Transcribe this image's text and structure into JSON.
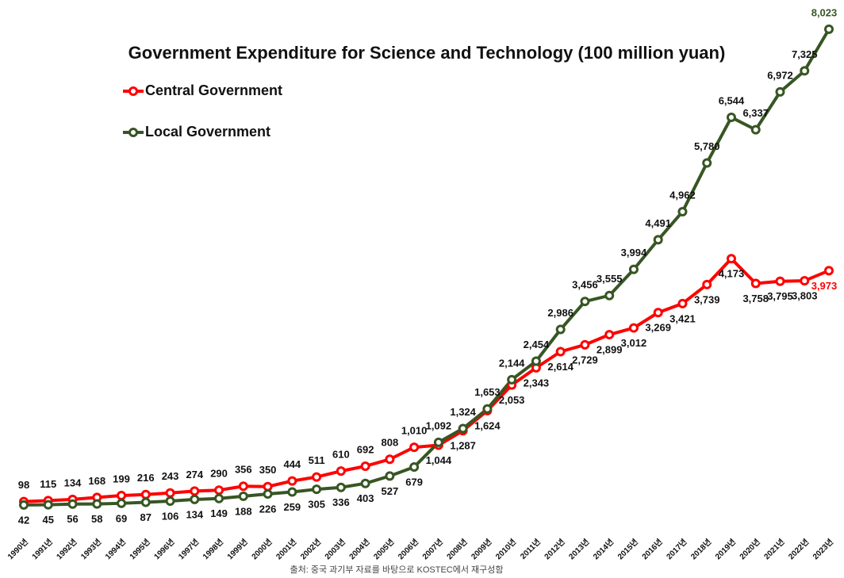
{
  "chart_data": {
    "type": "line",
    "title": "Government Expenditure for Science and Technology (100 million yuan)",
    "source": "출처: 중국 과기부 자료를 바탕으로 KOSTEC에서 재구성함",
    "categories": [
      "1990년",
      "1991년",
      "1992년",
      "1993년",
      "1994년",
      "1995년",
      "1996년",
      "1997년",
      "1998년",
      "1999년",
      "2000년",
      "2001년",
      "2002년",
      "2003년",
      "2004년",
      "2005년",
      "2006년",
      "2007년",
      "2008년",
      "2009년",
      "2010년",
      "2011년",
      "2012년",
      "2013년",
      "2014년",
      "2015년",
      "2016년",
      "2017년",
      "2018년",
      "2019년",
      "2020년",
      "2021년",
      "2022년",
      "2023년"
    ],
    "ylim": [
      0,
      8500
    ],
    "legend": "upper-left",
    "series": [
      {
        "name": "Central Government",
        "color": "#ff0000",
        "values": [
          98,
          115,
          134,
          168,
          199,
          216,
          243,
          274,
          290,
          356,
          350,
          444,
          511,
          610,
          692,
          808,
          1010,
          1044,
          1287,
          1624,
          2053,
          2343,
          2614,
          2729,
          2899,
          3012,
          3269,
          3421,
          3739,
          4173,
          3758,
          3795,
          3803,
          3973
        ],
        "value_labels": [
          "98",
          "115",
          "134",
          "168",
          "199",
          "216",
          "243",
          "274",
          "290",
          "356",
          "350",
          "444",
          "511",
          "610",
          "692",
          "808",
          "1,010",
          "1,044",
          "1,287",
          "1,624",
          "2,053",
          "2,343",
          "2,614",
          "2,729",
          "2,899",
          "3,012",
          "3,269",
          "3,421",
          "3,739",
          "4,173",
          "3,758",
          "3,795",
          "3,803",
          "3,973"
        ]
      },
      {
        "name": "Local Government",
        "color": "#375623",
        "values": [
          42,
          45,
          56,
          58,
          69,
          87,
          106,
          134,
          149,
          188,
          226,
          259,
          305,
          336,
          403,
          527,
          679,
          1092,
          1324,
          1653,
          2144,
          2454,
          2986,
          3456,
          3555,
          3994,
          4491,
          4962,
          5780,
          6544,
          6337,
          6972,
          7325,
          8023
        ],
        "value_labels": [
          "42",
          "45",
          "56",
          "58",
          "69",
          "87",
          "106",
          "134",
          "149",
          "188",
          "226",
          "259",
          "305",
          "336",
          "403",
          "527",
          "679",
          "1,092",
          "1,324",
          "1,653",
          "2,144",
          "2,454",
          "2,986",
          "3,456",
          "3,555",
          "3,994",
          "4,491",
          "4,962",
          "5,780",
          "6,544",
          "6,337",
          "6,972",
          "7,325",
          "8,023"
        ]
      }
    ]
  }
}
